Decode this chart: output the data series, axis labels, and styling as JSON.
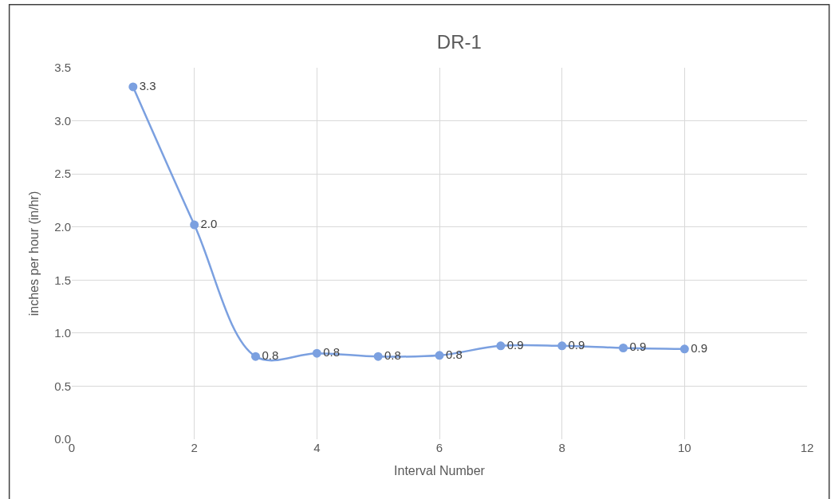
{
  "chart_data": {
    "type": "line",
    "title": "DR-1",
    "xlabel": "Interval Number",
    "ylabel": "inches per hour (in/hr)",
    "x": [
      1,
      2,
      3,
      4,
      5,
      6,
      7,
      8,
      9,
      10
    ],
    "series": [
      {
        "color": "#7ba0e0",
        "values": [
          3.32,
          2.02,
          0.78,
          0.81,
          0.78,
          0.79,
          0.88,
          0.88,
          0.86,
          0.85
        ],
        "value_labels": [
          "3.3",
          "2.0",
          "0.8",
          "0.8",
          "0.8",
          "0.8",
          "0.9",
          "0.9",
          "0.9",
          "0.9"
        ]
      }
    ],
    "xlim": [
      0,
      12
    ],
    "xticks": [
      0,
      2,
      4,
      6,
      8,
      10,
      12
    ],
    "ylim": [
      0,
      3.5
    ],
    "yticks": [
      {
        "value": 0,
        "label": "0.0"
      },
      {
        "value": 0.5,
        "label": "0.5"
      },
      {
        "value": 1,
        "label": "1.0"
      },
      {
        "value": 1.5,
        "label": "1.5"
      },
      {
        "value": 2,
        "label": "2.0"
      },
      {
        "value": 2.5,
        "label": "2.5"
      },
      {
        "value": 3,
        "label": "3.0"
      },
      {
        "value": 3.5,
        "label": "3.5"
      }
    ],
    "grid": true,
    "marker": "circle",
    "line_style": "solid",
    "legend": false
  }
}
